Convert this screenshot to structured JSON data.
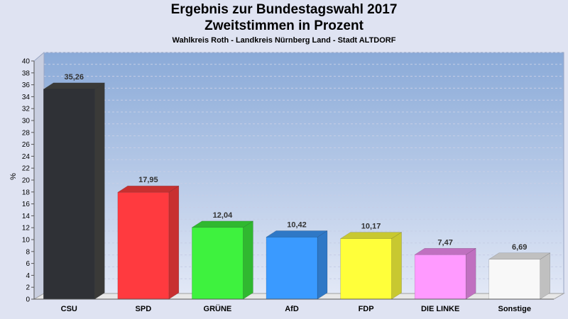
{
  "chart_data": {
    "type": "bar",
    "title": "Ergebnis zur Bundestagswahl 2017",
    "subtitle": "Zweitstimmen in Prozent",
    "caption": "Wahlkreis Roth - Landkreis Nürnberg Land - Stadt ALTDORF",
    "ylabel": "%",
    "ylim": [
      0,
      40
    ],
    "ytick_step": 2,
    "grid": true,
    "categories": [
      "CSU",
      "SPD",
      "GRÜNE",
      "AfD",
      "FDP",
      "DIE LINKE",
      "Sonstige"
    ],
    "values": [
      35.26,
      17.95,
      12.04,
      10.42,
      10.17,
      7.47,
      6.69
    ],
    "value_labels": [
      "35,26",
      "17,95",
      "12,04",
      "10,42",
      "10,17",
      "7,47",
      "6,69"
    ],
    "colors": [
      "#2f3136",
      "#ff3a3f",
      "#3ef23e",
      "#3a9aff",
      "#ffff3a",
      "#ff9aff",
      "#f8f8f8"
    ],
    "side_colors": [
      "#3a3a38",
      "#c83030",
      "#30b830",
      "#2f78c6",
      "#c8c830",
      "#c070c0",
      "#c0c0c0"
    ]
  }
}
